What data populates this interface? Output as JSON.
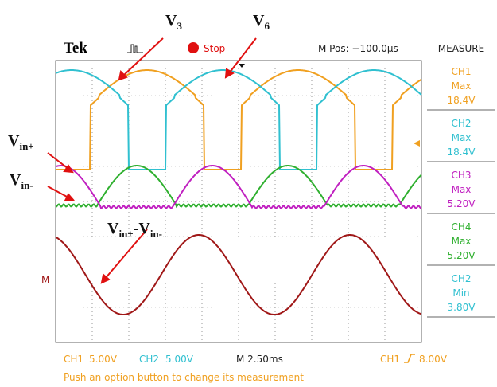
{
  "header": {
    "brand": "Tek",
    "status": "Stop",
    "position": "M Pos: −100.0µs"
  },
  "measure": {
    "title": "MEASURE",
    "items": [
      {
        "channel": "CH1",
        "kind": "Max",
        "value": "18.4V"
      },
      {
        "channel": "CH2",
        "kind": "Max",
        "value": "18.4V"
      },
      {
        "channel": "CH3",
        "kind": "Max",
        "value": "5.20V"
      },
      {
        "channel": "CH4",
        "kind": "Max",
        "value": "5.20V"
      },
      {
        "channel": "CH2",
        "kind": "Min",
        "value": "3.80V"
      }
    ]
  },
  "footer": {
    "ch1_name": "CH1",
    "ch1_scale": "5.00V",
    "ch2_name": "CH2",
    "ch2_scale": "5.00V",
    "timebase": "M 2.50ms",
    "trigger_source": "CH1",
    "trigger_level": "8.00V",
    "hint": "Push an option button to change its measurement"
  },
  "markers": {
    "math": "M"
  },
  "annotations": {
    "v3": {
      "main": "V",
      "sub": "3"
    },
    "v6": {
      "main": "V",
      "sub": "6"
    },
    "vin_plus": {
      "main": "V",
      "sub": "in+"
    },
    "vin_minus": {
      "main": "V",
      "sub": "in-"
    },
    "vdiff": {
      "main": "V",
      "sub": "in+",
      "main2": "-V",
      "sub2": "in-"
    }
  }
}
